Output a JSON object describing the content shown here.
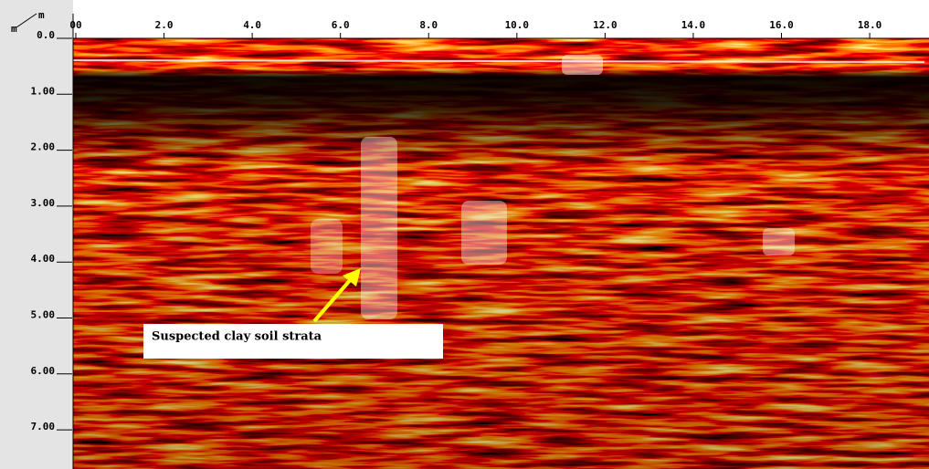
{
  "chart_data": {
    "type": "radargram",
    "x_unit": "m",
    "y_unit": "m",
    "xlim": [
      0,
      19.2
    ],
    "xticks": [
      {
        "value": 0,
        "label": "00"
      },
      {
        "value": 2,
        "label": "2.0"
      },
      {
        "value": 4,
        "label": "4.0"
      },
      {
        "value": 6,
        "label": "6.0"
      },
      {
        "value": 8,
        "label": "8.0"
      },
      {
        "value": 10,
        "label": "10.0"
      },
      {
        "value": 12,
        "label": "12.0"
      },
      {
        "value": 14,
        "label": "14.0"
      },
      {
        "value": 16,
        "label": "16.0"
      },
      {
        "value": 18,
        "label": "18.0"
      }
    ],
    "ylim": [
      0,
      7.7
    ],
    "yticks": [
      {
        "value": 0,
        "label": "0.0"
      },
      {
        "value": 1,
        "label": "1.00"
      },
      {
        "value": 2,
        "label": "2.00"
      },
      {
        "value": 3,
        "label": "3.00"
      },
      {
        "value": 4,
        "label": "4.00"
      },
      {
        "value": 5,
        "label": "5.00"
      },
      {
        "value": 6,
        "label": "6.00"
      },
      {
        "value": 7,
        "label": "7.00"
      }
    ],
    "annotation": "Suspected clay soil strata"
  }
}
